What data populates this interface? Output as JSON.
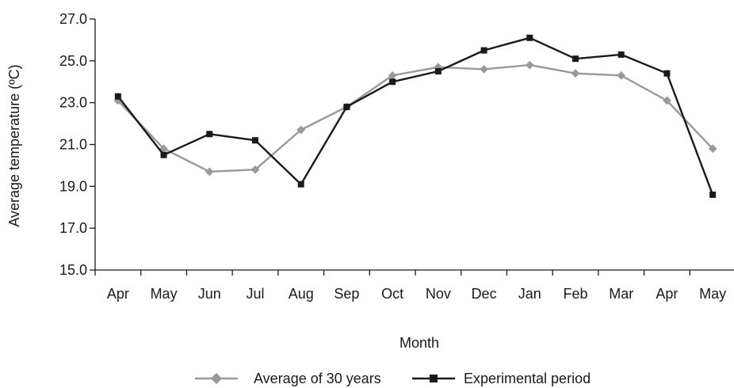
{
  "chart_data": {
    "type": "line",
    "title": "",
    "xlabel": "Month",
    "ylabel": "Average temperature (ºC)",
    "categories": [
      "Apr",
      "May",
      "Jun",
      "Jul",
      "Aug",
      "Sep",
      "Oct",
      "Nov",
      "Dec",
      "Jan",
      "Feb",
      "Mar",
      "Apr",
      "May"
    ],
    "ylim": [
      15.0,
      27.0
    ],
    "yticks": [
      "15.0",
      "17.0",
      "19.0",
      "21.0",
      "23.0",
      "25.0",
      "27.0"
    ],
    "grid": false,
    "legend_position": "bottom",
    "series": [
      {
        "name": "Average of 30 years",
        "color": "#999999",
        "marker": "diamond",
        "values": [
          23.1,
          20.8,
          19.7,
          19.8,
          21.7,
          22.8,
          24.3,
          24.7,
          24.6,
          24.8,
          24.4,
          24.3,
          23.1,
          20.8
        ]
      },
      {
        "name": "Experimental period",
        "color": "#1a1a1a",
        "marker": "square",
        "values": [
          23.3,
          20.5,
          21.5,
          21.2,
          19.1,
          22.8,
          24.0,
          24.5,
          25.5,
          26.1,
          25.1,
          25.3,
          24.4,
          18.6
        ]
      }
    ]
  }
}
